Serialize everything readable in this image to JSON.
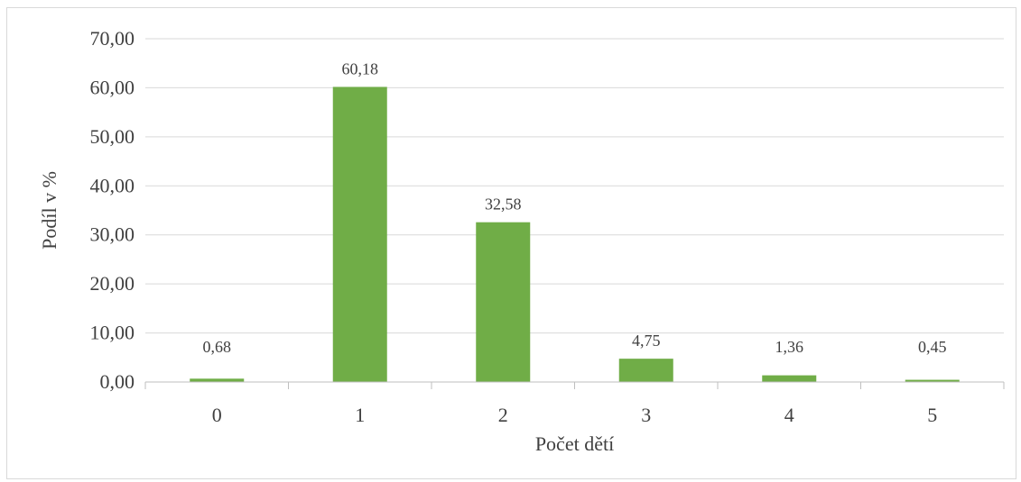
{
  "chart_data": {
    "type": "bar",
    "title": "",
    "xlabel": "Počet dětí",
    "ylabel": "Podíl v %",
    "categories": [
      "0",
      "1",
      "2",
      "3",
      "4",
      "5"
    ],
    "values": [
      0.68,
      60.18,
      32.58,
      4.75,
      1.36,
      0.45
    ],
    "value_labels": [
      "0,68",
      "60,18",
      "32,58",
      "4,75",
      "1,36",
      "0,45"
    ],
    "ylim": [
      0,
      70
    ],
    "y_ticks": [
      0,
      10,
      20,
      30,
      40,
      50,
      60,
      70
    ],
    "y_tick_labels": [
      "0,00",
      "10,00",
      "20,00",
      "30,00",
      "40,00",
      "50,00",
      "60,00",
      "70,00"
    ],
    "grid": true,
    "legend": "none",
    "bar_color": "#70ad47"
  }
}
